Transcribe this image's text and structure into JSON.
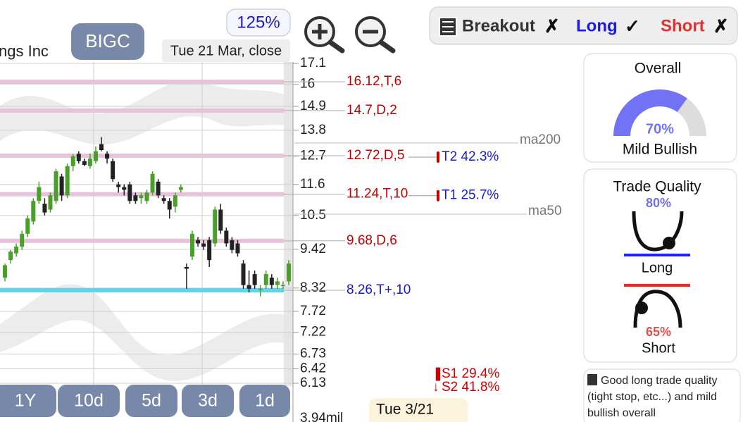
{
  "header": {
    "company": "ngs Inc",
    "ticker": "BIGC",
    "zoom": "125%",
    "date": "Tue 21 Mar, close"
  },
  "signals": [
    {
      "label": "Breakout",
      "mark": "✗",
      "color": "#333333"
    },
    {
      "label": "Long",
      "mark": "✓",
      "color": "#1a1ae6"
    },
    {
      "label": "Short",
      "mark": "✗",
      "color": "#e03030"
    }
  ],
  "chart_data": {
    "type": "candlestick",
    "log_scale": true,
    "ylim": [
      6.13,
      17.1
    ],
    "yticks": [
      17.1,
      16,
      14.9,
      13.8,
      12.7,
      11.6,
      10.5,
      9.42,
      8.32,
      7.72,
      7.22,
      6.73,
      6.42,
      6.13
    ],
    "up_color": "#4a9e2a",
    "down_color": "#222222",
    "candles": [
      [
        8.6,
        9.0,
        8.5,
        8.95
      ],
      [
        9.1,
        9.4,
        9.0,
        9.35
      ],
      [
        9.3,
        9.6,
        9.2,
        9.5
      ],
      [
        9.5,
        10.0,
        9.4,
        9.9
      ],
      [
        9.9,
        10.5,
        9.8,
        10.4
      ],
      [
        10.3,
        11.1,
        10.2,
        11.0
      ],
      [
        11.0,
        11.7,
        10.9,
        11.5
      ],
      [
        10.9,
        11.1,
        10.5,
        10.6
      ],
      [
        10.7,
        11.3,
        10.6,
        11.2
      ],
      [
        11.0,
        12.2,
        10.9,
        12.1
      ],
      [
        11.9,
        12.0,
        11.0,
        11.2
      ],
      [
        11.2,
        12.4,
        11.1,
        12.3
      ],
      [
        12.3,
        12.8,
        12.1,
        12.7
      ],
      [
        12.8,
        12.9,
        12.4,
        12.5
      ],
      [
        12.5,
        12.6,
        12.3,
        12.35
      ],
      [
        12.3,
        12.8,
        12.2,
        12.6
      ],
      [
        12.5,
        13.1,
        12.4,
        12.9
      ],
      [
        13.2,
        13.5,
        12.9,
        12.95
      ],
      [
        12.8,
        12.9,
        12.4,
        12.6
      ],
      [
        12.5,
        12.6,
        11.7,
        11.8
      ],
      [
        11.6,
        11.7,
        11.3,
        11.5
      ],
      [
        11.5,
        11.6,
        11.2,
        11.4
      ],
      [
        11.6,
        11.7,
        10.9,
        11.0
      ],
      [
        11.2,
        11.3,
        10.9,
        11.0
      ],
      [
        11.1,
        11.3,
        10.9,
        11.2
      ],
      [
        11.0,
        11.4,
        10.9,
        11.3
      ],
      [
        11.3,
        12.1,
        11.2,
        12.0
      ],
      [
        11.7,
        11.8,
        11.1,
        11.2
      ],
      [
        11.1,
        11.2,
        10.9,
        11.0
      ],
      [
        11.0,
        11.1,
        10.4,
        10.7
      ],
      [
        10.8,
        11.3,
        10.6,
        11.2
      ],
      [
        11.4,
        11.6,
        11.3,
        11.5
      ],
      [
        8.9,
        9.0,
        8.3,
        8.85
      ],
      [
        9.2,
        10.0,
        9.1,
        9.9
      ],
      [
        9.7,
        9.8,
        9.5,
        9.6
      ],
      [
        9.6,
        9.7,
        9.4,
        9.5
      ],
      [
        9.7,
        9.8,
        8.9,
        9.1
      ],
      [
        9.6,
        10.8,
        9.5,
        10.7
      ],
      [
        10.7,
        10.9,
        9.9,
        10.0
      ],
      [
        10.0,
        10.1,
        9.5,
        9.6
      ],
      [
        9.7,
        9.8,
        9.3,
        9.4
      ],
      [
        9.6,
        9.7,
        9.2,
        9.3
      ],
      [
        9.0,
        9.1,
        8.3,
        8.4
      ],
      [
        8.4,
        8.8,
        8.2,
        8.3
      ],
      [
        8.7,
        8.8,
        8.3,
        8.4
      ],
      [
        8.3,
        8.4,
        8.1,
        8.3
      ],
      [
        8.4,
        8.8,
        8.3,
        8.7
      ],
      [
        8.6,
        8.7,
        8.3,
        8.4
      ],
      [
        8.4,
        8.6,
        8.3,
        8.5
      ],
      [
        8.4,
        8.5,
        8.3,
        8.4
      ],
      [
        8.5,
        9.1,
        8.4,
        9.0
      ]
    ],
    "levels": [
      {
        "value": 16.12,
        "label": "16.12,T,6",
        "color": "#e6c3da",
        "label_color": "#c00000"
      },
      {
        "value": 14.7,
        "label": "14.7,D,2",
        "color": "#e6c3da",
        "label_color": "#c00000"
      },
      {
        "value": 12.72,
        "label": "12.72,D,5",
        "color": "#e6c3da",
        "label_color": "#c00000",
        "target": "T2 42.3%"
      },
      {
        "value": 11.24,
        "label": "11.24,T,10",
        "color": "#e6c3da",
        "label_color": "#c00000",
        "target": "T1 25.7%"
      },
      {
        "value": 9.68,
        "label": "9.68,D,6",
        "color": "#e6c3da",
        "label_color": "#c00000"
      },
      {
        "value": 8.26,
        "label": "8.26,T+,10",
        "color": "#5cd4f2",
        "label_color": "#1a1acc"
      }
    ],
    "stops": [
      "S1 29.4%",
      "S2 41.8%"
    ],
    "ma_labels": [
      "ma200",
      "ma50"
    ],
    "volume_label": "3.94mil"
  },
  "overall": {
    "title": "Overall",
    "value": 70,
    "value_label": "70%",
    "rating": "Mild Bullish"
  },
  "trade_quality": {
    "title": "Trade Quality",
    "long": {
      "value": 80,
      "value_label": "80%",
      "label": "Long"
    },
    "short": {
      "value": 65,
      "value_label": "65%",
      "label": "Short"
    }
  },
  "note": "Good long trade quality (tight stop, etc...) and mild bullish overall",
  "periods": [
    "1Y",
    "10d",
    "5d",
    "3d",
    "1d"
  ],
  "date_badge": "Tue 3/21"
}
